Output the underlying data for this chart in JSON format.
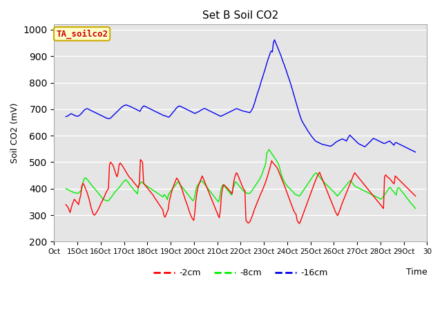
{
  "title": "Set B Soil CO2",
  "ylabel": "Soil CO2 (mV)",
  "xlabel": "Time",
  "legend_label": "TA_soilco2",
  "ylim": [
    200,
    1020
  ],
  "bg_color": "#e5e5e5",
  "fig_color": "#ffffff",
  "line_colors": {
    "2cm": "#ff0000",
    "8cm": "#00ee00",
    "16cm": "#0000ee"
  },
  "legend_entries": [
    "-2cm",
    "-8cm",
    "-16cm"
  ],
  "x_tick_labels": [
    "Oct",
    "15Oct",
    "16Oct",
    "17Oct",
    "18Oct",
    "19Oct",
    "20Oct",
    "21Oct",
    "22Oct",
    "23Oct",
    "24Oct",
    "25Oct",
    "26Oct",
    "27Oct",
    "28Oct",
    "29Oct",
    "30"
  ],
  "x_ticks": [
    -12,
    12,
    36,
    60,
    84,
    108,
    132,
    156,
    180,
    204,
    228,
    252,
    276,
    300,
    324,
    348,
    372
  ],
  "data_2cm": [
    340,
    335,
    330,
    320,
    310,
    325,
    340,
    350,
    360,
    355,
    350,
    345,
    340,
    360,
    375,
    410,
    420,
    415,
    405,
    395,
    385,
    372,
    358,
    342,
    325,
    312,
    302,
    300,
    305,
    312,
    318,
    326,
    335,
    345,
    352,
    360,
    368,
    378,
    388,
    394,
    400,
    490,
    500,
    495,
    490,
    480,
    468,
    455,
    445,
    458,
    490,
    497,
    492,
    487,
    480,
    474,
    467,
    460,
    453,
    447,
    441,
    438,
    434,
    428,
    422,
    418,
    413,
    408,
    403,
    420,
    510,
    505,
    500,
    420,
    415,
    410,
    405,
    400,
    395,
    390,
    385,
    380,
    375,
    368,
    362,
    356,
    350,
    344,
    338,
    332,
    326,
    320,
    300,
    292,
    300,
    312,
    320,
    350,
    368,
    385,
    398,
    410,
    420,
    430,
    440,
    435,
    428,
    418,
    408,
    398,
    385,
    372,
    360,
    348,
    338,
    325,
    312,
    302,
    292,
    285,
    280,
    310,
    355,
    385,
    405,
    418,
    428,
    438,
    448,
    438,
    428,
    418,
    408,
    398,
    388,
    378,
    368,
    358,
    348,
    338,
    328,
    318,
    308,
    298,
    290,
    320,
    375,
    400,
    415,
    412,
    408,
    404,
    400,
    395,
    390,
    385,
    380,
    410,
    435,
    450,
    460,
    455,
    445,
    435,
    425,
    415,
    405,
    398,
    392,
    280,
    275,
    270,
    272,
    278,
    288,
    298,
    310,
    322,
    332,
    342,
    352,
    362,
    372,
    382,
    390,
    400,
    410,
    420,
    432,
    444,
    458,
    472,
    486,
    505,
    500,
    495,
    490,
    485,
    480,
    472,
    462,
    452,
    442,
    432,
    422,
    412,
    402,
    390,
    380,
    368,
    358,
    347,
    336,
    326,
    315,
    308,
    303,
    280,
    274,
    268,
    275,
    286,
    297,
    308,
    319,
    330,
    341,
    352,
    363,
    374,
    385,
    396,
    407,
    418,
    428,
    438,
    448,
    455,
    462,
    452,
    442,
    432,
    422,
    412,
    402,
    392,
    382,
    372,
    362,
    352,
    342,
    332,
    322,
    312,
    305,
    298,
    308,
    318,
    330,
    342,
    352,
    362,
    372,
    382,
    392,
    402,
    412,
    422,
    432,
    442,
    452,
    460,
    455,
    450,
    445,
    440,
    435,
    430,
    425,
    420,
    415,
    410,
    405,
    400,
    395,
    390,
    385,
    380,
    375,
    370,
    365,
    360,
    355,
    350,
    345,
    340,
    335,
    330,
    325,
    445,
    452,
    448,
    443,
    440,
    437,
    432,
    427,
    422,
    418,
    448,
    444,
    440,
    436,
    432,
    428,
    424,
    420,
    416,
    412,
    408,
    404,
    400,
    396,
    392,
    388,
    384,
    380,
    376,
    372
  ],
  "data_8cm": [
    400,
    398,
    396,
    394,
    392,
    390,
    388,
    386,
    385,
    384,
    383,
    382,
    384,
    387,
    392,
    400,
    422,
    436,
    441,
    439,
    435,
    430,
    425,
    419,
    414,
    409,
    404,
    400,
    395,
    390,
    385,
    380,
    375,
    370,
    365,
    360,
    358,
    356,
    355,
    354,
    355,
    360,
    365,
    370,
    376,
    382,
    387,
    392,
    396,
    400,
    405,
    410,
    416,
    421,
    426,
    430,
    434,
    430,
    425,
    420,
    414,
    409,
    404,
    399,
    394,
    390,
    385,
    380,
    410,
    416,
    422,
    426,
    421,
    418,
    415,
    412,
    409,
    406,
    404,
    401,
    399,
    396,
    393,
    390,
    388,
    385,
    382,
    380,
    377,
    374,
    372,
    369,
    378,
    374,
    368,
    358,
    378,
    384,
    390,
    396,
    400,
    406,
    410,
    416,
    421,
    426,
    421,
    415,
    410,
    405,
    400,
    395,
    389,
    384,
    379,
    374,
    369,
    364,
    359,
    354,
    360,
    380,
    400,
    412,
    416,
    421,
    426,
    430,
    426,
    421,
    416,
    411,
    406,
    400,
    395,
    390,
    384,
    379,
    374,
    369,
    364,
    358,
    354,
    350,
    370,
    395,
    408,
    415,
    411,
    406,
    401,
    396,
    391,
    386,
    381,
    376,
    396,
    408,
    420,
    426,
    421,
    416,
    411,
    406,
    401,
    396,
    392,
    389,
    386,
    384,
    382,
    381,
    383,
    386,
    392,
    398,
    404,
    410,
    416,
    422,
    428,
    434,
    442,
    450,
    460,
    472,
    484,
    496,
    535,
    540,
    548,
    542,
    536,
    530,
    524,
    518,
    512,
    506,
    500,
    492,
    478,
    462,
    448,
    438,
    428,
    422,
    416,
    410,
    406,
    402,
    398,
    394,
    390,
    386,
    380,
    378,
    376,
    374,
    372,
    374,
    380,
    386,
    392,
    398,
    404,
    410,
    416,
    422,
    428,
    434,
    440,
    446,
    452,
    456,
    460,
    456,
    451,
    446,
    441,
    436,
    432,
    427,
    422,
    418,
    414,
    410,
    406,
    402,
    398,
    394,
    390,
    386,
    382,
    377,
    372,
    377,
    382,
    387,
    392,
    397,
    402,
    407,
    412,
    417,
    422,
    427,
    430,
    426,
    421,
    416,
    411,
    408,
    406,
    404,
    402,
    400,
    398,
    396,
    394,
    392,
    390,
    388,
    386,
    384,
    382,
    380,
    378,
    376,
    374,
    372,
    370,
    368,
    366,
    364,
    362,
    360,
    365,
    370,
    376,
    382,
    388,
    394,
    400,
    405,
    402,
    396,
    391,
    386,
    381,
    376,
    398,
    404,
    401,
    396,
    391,
    386,
    381,
    376,
    370,
    365,
    360,
    354,
    349,
    344,
    340,
    335,
    330,
    325
  ],
  "data_16cm": [
    672,
    673,
    675,
    678,
    681,
    683,
    681,
    679,
    677,
    675,
    674,
    673,
    675,
    678,
    682,
    686,
    691,
    696,
    699,
    701,
    702,
    700,
    698,
    696,
    694,
    692,
    690,
    688,
    686,
    684,
    682,
    680,
    678,
    676,
    674,
    672,
    670,
    668,
    666,
    665,
    664,
    665,
    668,
    672,
    676,
    680,
    684,
    688,
    692,
    696,
    700,
    704,
    708,
    711,
    713,
    715,
    716,
    715,
    713,
    712,
    710,
    708,
    706,
    704,
    702,
    700,
    698,
    696,
    694,
    692,
    700,
    706,
    711,
    712,
    710,
    708,
    706,
    704,
    702,
    700,
    698,
    696,
    694,
    692,
    690,
    688,
    686,
    684,
    682,
    680,
    678,
    676,
    675,
    674,
    672,
    671,
    670,
    675,
    680,
    685,
    690,
    695,
    700,
    705,
    709,
    711,
    712,
    710,
    708,
    706,
    704,
    702,
    700,
    698,
    696,
    694,
    692,
    690,
    688,
    686,
    684,
    686,
    688,
    690,
    692,
    695,
    697,
    699,
    701,
    703,
    701,
    699,
    697,
    695,
    693,
    691,
    689,
    687,
    685,
    683,
    681,
    679,
    677,
    675,
    673,
    675,
    677,
    679,
    681,
    683,
    685,
    687,
    689,
    691,
    693,
    695,
    697,
    699,
    701,
    702,
    700,
    699,
    697,
    696,
    694,
    693,
    692,
    691,
    690,
    689,
    688,
    687,
    692,
    698,
    706,
    718,
    730,
    745,
    758,
    770,
    782,
    796,
    810,
    822,
    835,
    848,
    862,
    875,
    889,
    900,
    912,
    920,
    916,
    952,
    962,
    952,
    942,
    932,
    922,
    912,
    902,
    890,
    878,
    868,
    856,
    845,
    832,
    820,
    808,
    796,
    782,
    768,
    754,
    740,
    726,
    712,
    698,
    684,
    672,
    660,
    652,
    645,
    638,
    632,
    625,
    618,
    612,
    606,
    600,
    595,
    590,
    585,
    580,
    578,
    576,
    574,
    572,
    570,
    568,
    567,
    566,
    565,
    564,
    563,
    562,
    561,
    560,
    562,
    565,
    568,
    572,
    575,
    578,
    580,
    582,
    584,
    586,
    588,
    586,
    584,
    582,
    580,
    590,
    596,
    602,
    598,
    594,
    590,
    586,
    582,
    578,
    574,
    570,
    568,
    566,
    564,
    562,
    560,
    558,
    562,
    566,
    570,
    574,
    578,
    582,
    586,
    590,
    588,
    586,
    584,
    582,
    580,
    578,
    576,
    574,
    572,
    570,
    572,
    574,
    576,
    578,
    580,
    576,
    572,
    568,
    564,
    572,
    574,
    572,
    570,
    568,
    566,
    564,
    562,
    560,
    558,
    556,
    554,
    552,
    550,
    548,
    546,
    544,
    542,
    540,
    538
  ]
}
